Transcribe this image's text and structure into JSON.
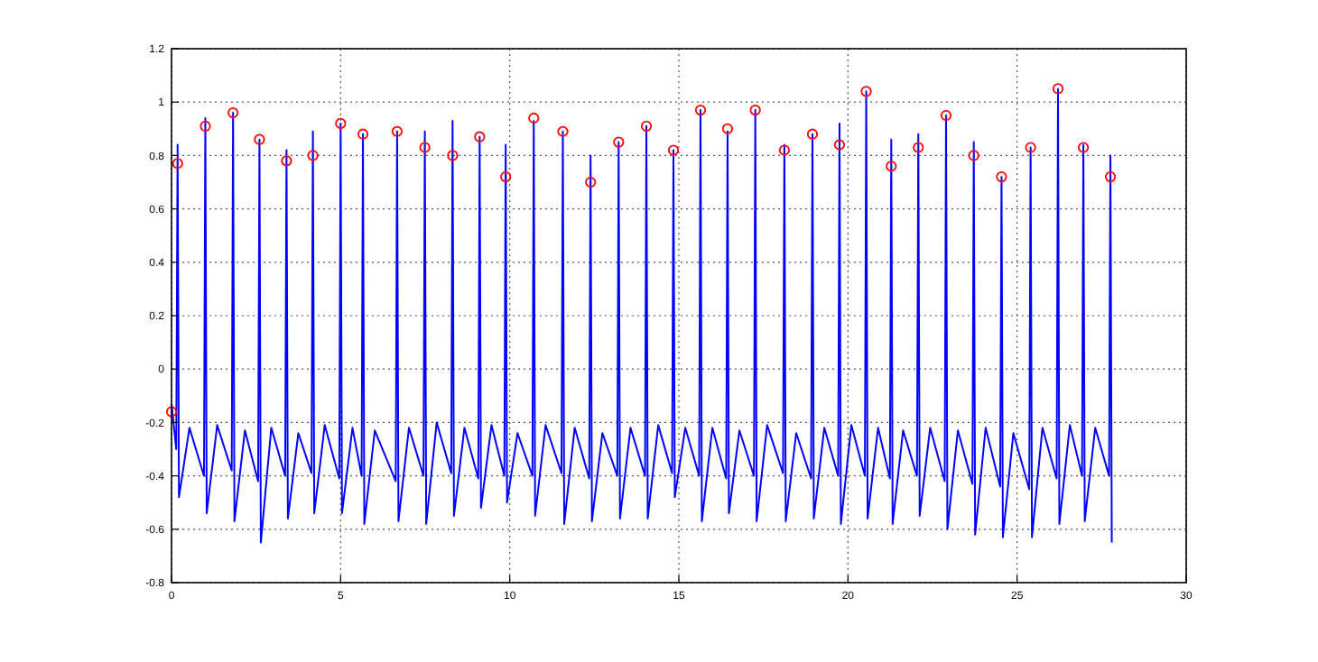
{
  "chart_data": {
    "type": "line",
    "xlim": [
      0,
      30
    ],
    "xticks": [
      0,
      5,
      10,
      15,
      20,
      25,
      30
    ],
    "ylim": [
      -0.8,
      1.2
    ],
    "yticks": [
      -0.8,
      -0.6,
      -0.4,
      -0.2,
      0,
      0.2,
      0.4,
      0.6,
      0.8,
      1,
      1.2
    ],
    "grid": true,
    "series": [
      {
        "color": "#0000ff",
        "marker": "none",
        "x": [
          0,
          0.14,
          0.18,
          0.22,
          0.53,
          0.96,
          1.0,
          1.04,
          1.35,
          1.78,
          1.82,
          1.86,
          2.17,
          2.56,
          2.6,
          2.64,
          2.95,
          3.36,
          3.4,
          3.44,
          3.75,
          4.14,
          4.18,
          4.22,
          4.53,
          4.96,
          5.0,
          5.04,
          5.35,
          5.62,
          5.66,
          5.7,
          6.01,
          6.63,
          6.67,
          6.71,
          7.02,
          7.45,
          7.49,
          7.53,
          7.84,
          8.27,
          8.31,
          8.35,
          8.66,
          9.07,
          9.11,
          9.15,
          9.46,
          9.84,
          9.88,
          9.92,
          10.23,
          10.67,
          10.71,
          10.75,
          11.06,
          11.53,
          11.57,
          11.61,
          11.92,
          12.35,
          12.39,
          12.43,
          12.74,
          13.18,
          13.22,
          13.26,
          13.57,
          14.0,
          14.04,
          14.08,
          14.39,
          14.8,
          14.84,
          14.88,
          15.19,
          15.6,
          15.64,
          15.68,
          15.99,
          16.4,
          16.44,
          16.48,
          16.79,
          17.22,
          17.26,
          17.3,
          17.61,
          18.08,
          18.12,
          18.16,
          18.47,
          18.91,
          18.95,
          18.99,
          19.3,
          19.71,
          19.75,
          19.79,
          20.1,
          20.5,
          20.54,
          20.58,
          20.89,
          21.24,
          21.28,
          21.32,
          21.63,
          22.04,
          22.08,
          22.12,
          22.43,
          22.86,
          22.9,
          22.94,
          23.25,
          23.68,
          23.72,
          23.76,
          24.07,
          24.5,
          24.54,
          24.58,
          24.89,
          25.36,
          25.4,
          25.44,
          25.75,
          26.17,
          26.21,
          26.25,
          26.56,
          26.92,
          26.96,
          27.0,
          27.31,
          27.72,
          27.76,
          27.8
        ],
        "values": [
          -0.13,
          -0.3,
          0.84,
          -0.48,
          -0.22,
          -0.4,
          0.94,
          -0.54,
          -0.21,
          -0.38,
          0.96,
          -0.57,
          -0.23,
          -0.42,
          0.86,
          -0.65,
          -0.22,
          -0.4,
          0.82,
          -0.56,
          -0.24,
          -0.39,
          0.89,
          -0.54,
          -0.21,
          -0.41,
          0.92,
          -0.54,
          -0.22,
          -0.4,
          0.88,
          -0.58,
          -0.23,
          -0.42,
          0.89,
          -0.57,
          -0.22,
          -0.4,
          0.89,
          -0.58,
          -0.2,
          -0.39,
          0.93,
          -0.55,
          -0.22,
          -0.41,
          0.87,
          -0.52,
          -0.21,
          -0.4,
          0.84,
          -0.5,
          -0.24,
          -0.4,
          0.93,
          -0.55,
          -0.21,
          -0.39,
          0.89,
          -0.58,
          -0.22,
          -0.41,
          0.8,
          -0.57,
          -0.24,
          -0.4,
          0.85,
          -0.56,
          -0.22,
          -0.4,
          0.91,
          -0.56,
          -0.21,
          -0.39,
          0.82,
          -0.48,
          -0.22,
          -0.4,
          0.97,
          -0.57,
          -0.22,
          -0.41,
          0.89,
          -0.54,
          -0.23,
          -0.4,
          0.97,
          -0.57,
          -0.21,
          -0.39,
          0.84,
          -0.57,
          -0.24,
          -0.41,
          0.88,
          -0.56,
          -0.22,
          -0.4,
          0.92,
          -0.58,
          -0.21,
          -0.4,
          1.04,
          -0.56,
          -0.22,
          -0.41,
          0.86,
          -0.58,
          -0.23,
          -0.4,
          0.88,
          -0.55,
          -0.22,
          -0.42,
          0.95,
          -0.6,
          -0.23,
          -0.43,
          0.85,
          -0.62,
          -0.22,
          -0.44,
          0.72,
          -0.63,
          -0.24,
          -0.45,
          0.83,
          -0.63,
          -0.22,
          -0.41,
          1.05,
          -0.58,
          -0.21,
          -0.4,
          0.84,
          -0.57,
          -0.22,
          -0.4,
          0.8,
          -0.65
        ]
      },
      {
        "type": "scatter",
        "color": "#ff0000",
        "marker": "circle",
        "x": [
          0,
          0.18,
          1.0,
          1.82,
          2.6,
          3.4,
          4.18,
          5.0,
          5.66,
          6.67,
          7.49,
          8.31,
          9.11,
          9.88,
          10.71,
          11.57,
          12.39,
          13.22,
          14.04,
          14.84,
          15.64,
          16.44,
          17.26,
          18.12,
          18.95,
          19.75,
          20.54,
          21.28,
          22.08,
          22.9,
          23.72,
          24.54,
          25.4,
          26.21,
          26.96,
          27.76
        ],
        "values": [
          -0.16,
          0.77,
          0.91,
          0.96,
          0.86,
          0.78,
          0.8,
          0.92,
          0.88,
          0.89,
          0.83,
          0.8,
          0.87,
          0.72,
          0.94,
          0.89,
          0.7,
          0.85,
          0.91,
          0.82,
          0.97,
          0.9,
          0.97,
          0.82,
          0.88,
          0.84,
          1.04,
          0.76,
          0.83,
          0.95,
          0.8,
          0.72,
          0.83,
          1.05,
          0.83,
          0.72
        ]
      }
    ]
  }
}
